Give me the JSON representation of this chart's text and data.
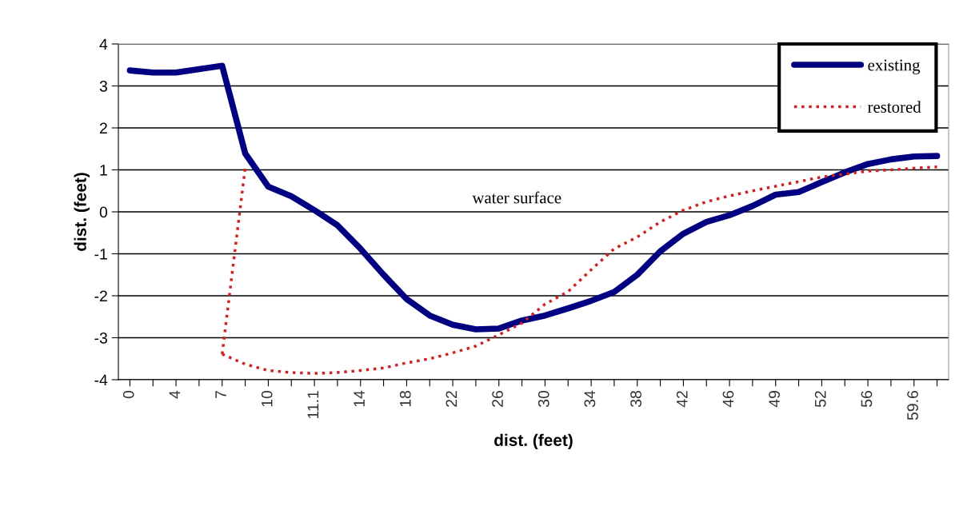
{
  "chart_data": {
    "type": "line",
    "xlabel": "dist. (feet)",
    "ylabel": "dist. (feet)",
    "categories": [
      "0",
      null,
      "4",
      null,
      "7",
      null,
      "10",
      null,
      "11.1",
      null,
      "14",
      null,
      "18",
      null,
      "22",
      null,
      "26",
      null,
      "30",
      null,
      "34",
      null,
      "38",
      null,
      "42",
      null,
      "46",
      null,
      "49",
      null,
      "52",
      null,
      "56",
      null,
      "59.6",
      null
    ],
    "ylim": [
      -4,
      4
    ],
    "yticks": [
      -4,
      -3,
      -2,
      -1,
      0,
      1,
      2,
      3,
      4
    ],
    "grid": "y",
    "legend": "top right",
    "series": [
      {
        "name": "existing",
        "color": "#000080",
        "line_style": "solid",
        "values": [
          3.37,
          3.32,
          3.32,
          3.4,
          3.48,
          1.39,
          0.6,
          0.37,
          0.04,
          -0.32,
          -0.88,
          -1.5,
          -2.08,
          -2.47,
          -2.69,
          -2.8,
          -2.78,
          -2.59,
          -2.47,
          -2.3,
          -2.12,
          -1.91,
          -1.5,
          -0.94,
          -0.52,
          -0.24,
          -0.08,
          0.14,
          0.41,
          0.47,
          0.71,
          0.94,
          1.14,
          1.25,
          1.32,
          1.33
        ]
      },
      {
        "name": "restored",
        "color": "#cc2222",
        "line_style": "dotted",
        "values": [
          null,
          null,
          null,
          null,
          -3.39,
          -3.63,
          -3.78,
          -3.83,
          -3.85,
          -3.83,
          -3.78,
          -3.72,
          -3.6,
          -3.5,
          -3.36,
          -3.2,
          -2.93,
          -2.65,
          -2.2,
          -1.9,
          -1.38,
          -0.88,
          -0.6,
          -0.24,
          0.04,
          0.24,
          0.38,
          0.5,
          0.61,
          0.72,
          0.83,
          0.9,
          0.97,
          1.0,
          1.04,
          1.07
        ]
      },
      {
        "color": "#cc2222",
        "line_style": "dotted",
        "values": [
          null,
          null,
          null,
          null,
          -3.39,
          1.05,
          null,
          null,
          null,
          null,
          null,
          null,
          null,
          null,
          null,
          null,
          null,
          null,
          null,
          null,
          null,
          null,
          null,
          null,
          null,
          null,
          null,
          null,
          null,
          null,
          null,
          null,
          null,
          null,
          null,
          null
        ]
      }
    ],
    "annotations": [
      "water surface"
    ]
  }
}
